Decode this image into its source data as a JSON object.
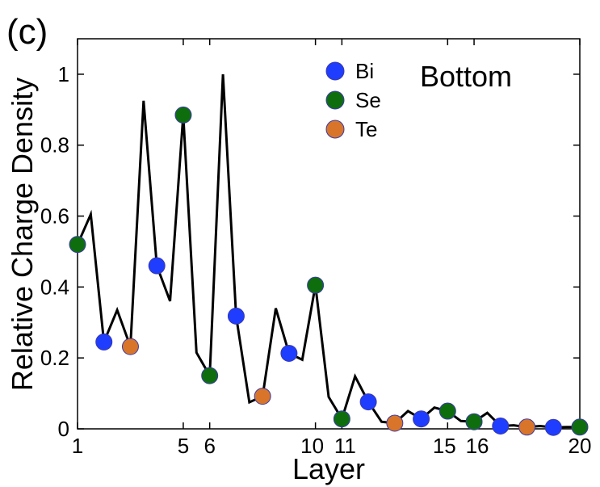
{
  "chart_data": {
    "type": "line",
    "panel_label": "(c)",
    "title": "",
    "annotation": "Bottom",
    "xlabel": "Layer",
    "ylabel": "Relative Charge Density",
    "xlim": [
      1,
      20
    ],
    "ylim": [
      0,
      1.1
    ],
    "x_ticks": [
      1,
      5,
      6,
      10,
      11,
      15,
      16,
      20
    ],
    "x_tick_labels": [
      "1",
      "5",
      "6",
      "10",
      "11",
      "15",
      "16",
      "20"
    ],
    "y_ticks": [
      0,
      0.2,
      0.4,
      0.6,
      0.8,
      1
    ],
    "y_tick_labels": [
      "0",
      "0.2",
      "0.4",
      "0.6",
      "0.8",
      "1"
    ],
    "grid": false,
    "legend_position": "top-center",
    "line": {
      "color": "#000000",
      "x": [
        1,
        1.5,
        2,
        2.5,
        3,
        3.5,
        4,
        4.5,
        5,
        5.5,
        6,
        6.5,
        7,
        7.5,
        8,
        8.5,
        9,
        9.5,
        10,
        10.5,
        11,
        11.5,
        12,
        12.5,
        13,
        13.5,
        14,
        14.5,
        15,
        15.5,
        16,
        16.5,
        17,
        17.5,
        18,
        18.5,
        19,
        19.5,
        20
      ],
      "y": [
        0.52,
        0.605,
        0.245,
        0.335,
        0.232,
        0.925,
        0.46,
        0.36,
        0.885,
        0.215,
        0.15,
        1.0,
        0.318,
        0.075,
        0.092,
        0.34,
        0.213,
        0.195,
        0.405,
        0.09,
        0.028,
        0.148,
        0.076,
        0.02,
        0.016,
        0.05,
        0.028,
        0.06,
        0.05,
        0.022,
        0.02,
        0.045,
        0.008,
        0.01,
        0.005,
        0.008,
        0.004,
        0.005,
        0.005
      ]
    },
    "series": [
      {
        "name": "Bi",
        "color": "#1f3dff",
        "x": [
          2,
          4,
          7,
          9,
          12,
          14,
          17,
          19
        ],
        "y": [
          0.245,
          0.46,
          0.318,
          0.213,
          0.076,
          0.028,
          0.008,
          0.004
        ]
      },
      {
        "name": "Se",
        "color": "#0e6e0e",
        "x": [
          1,
          5,
          6,
          10,
          11,
          15,
          16,
          20
        ],
        "y": [
          0.52,
          0.885,
          0.15,
          0.405,
          0.028,
          0.05,
          0.02,
          0.005
        ]
      },
      {
        "name": "Te",
        "color": "#d8752a",
        "x": [
          3,
          8,
          13,
          18
        ],
        "y": [
          0.232,
          0.092,
          0.016,
          0.005
        ]
      }
    ]
  }
}
